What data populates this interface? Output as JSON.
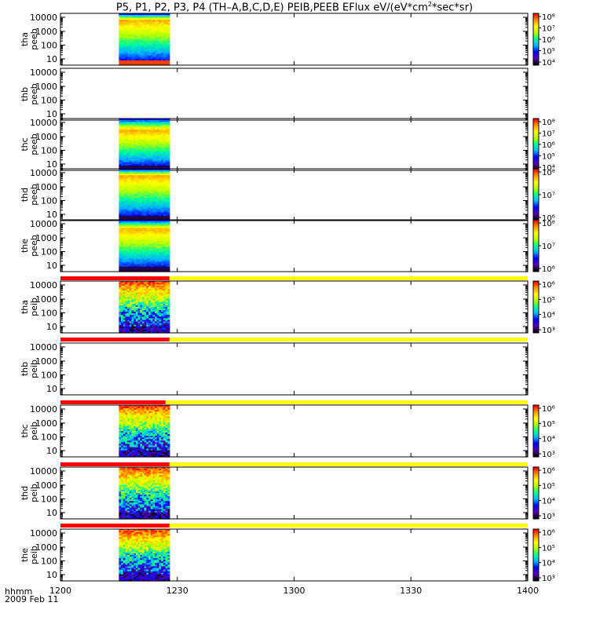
{
  "title": {
    "prefix": "P5, P1, P2, P3, P4 (TH–A,B,C,D,E) PEIB,PEEB EFlux eV/(eV*cm",
    "sup": "2",
    "suffix": "*sec*sr)"
  },
  "footer": {
    "time_label": "hhmm",
    "date": "2009 Feb 11"
  },
  "chart_data": {
    "type": "heatmap",
    "x_axis": {
      "range": [
        "12:00",
        "14:00"
      ],
      "ticks": [
        "1200",
        "1230",
        "1300",
        "1330",
        "1400"
      ]
    },
    "y_axis": {
      "scale": "log",
      "ticks": [
        "10",
        "100",
        "1000",
        "10000"
      ]
    },
    "data_interval": [
      "12:15",
      "12:28"
    ],
    "colorbar_palette": [
      "#000000",
      "#5a00b4",
      "#0000ff",
      "#00b4ff",
      "#00ff96",
      "#b4ff00",
      "#ffff00",
      "#ff9600",
      "#ff0000"
    ],
    "panels": [
      {
        "probe": "tha",
        "product": "peeb",
        "has_data": true,
        "colorbar": [
          "10⁴",
          "10⁵",
          "10⁶",
          "10⁷",
          "10⁸"
        ]
      },
      {
        "probe": "thb",
        "product": "peeb",
        "has_data": false,
        "colorbar": []
      },
      {
        "probe": "thc",
        "product": "peeb",
        "has_data": true,
        "colorbar": [
          "10⁴",
          "10⁵",
          "10⁶",
          "10⁷",
          "10⁸"
        ]
      },
      {
        "probe": "thd",
        "product": "peeb",
        "has_data": true,
        "colorbar": [
          "10⁶",
          "10⁷",
          "10⁸"
        ]
      },
      {
        "probe": "the",
        "product": "peeb",
        "has_data": true,
        "colorbar": [
          "10⁶",
          "10⁷",
          "10⁸"
        ]
      },
      {
        "probe": "tha",
        "product": "peib",
        "has_data": true,
        "colorbar": [
          "10³",
          "10⁴",
          "10⁵",
          "10⁶"
        ]
      },
      {
        "probe": "thb",
        "product": "peib",
        "has_data": false,
        "colorbar": []
      },
      {
        "probe": "thc",
        "product": "peib",
        "has_data": true,
        "colorbar": [
          "10³",
          "10⁴",
          "10⁵",
          "10⁶"
        ]
      },
      {
        "probe": "thd",
        "product": "peib",
        "has_data": true,
        "colorbar": [
          "10³",
          "10⁴",
          "10⁵",
          "10⁶"
        ]
      },
      {
        "probe": "the",
        "product": "peib",
        "has_data": true,
        "colorbar": [
          "10³",
          "10⁴",
          "10⁵",
          "10⁶"
        ]
      }
    ],
    "status_bars": [
      {
        "before": "tha peib",
        "red_until": "12:28",
        "then": "yellow"
      },
      {
        "before": "thb peib",
        "red_until": "12:28",
        "then": "yellow"
      },
      {
        "before": "thc peib",
        "red_until": "12:27",
        "then": "yellow"
      },
      {
        "before": "thd peib",
        "red_until": "12:28",
        "then": "yellow"
      },
      {
        "before": "the peib",
        "red_until": "12:28",
        "then": "yellow"
      }
    ]
  }
}
